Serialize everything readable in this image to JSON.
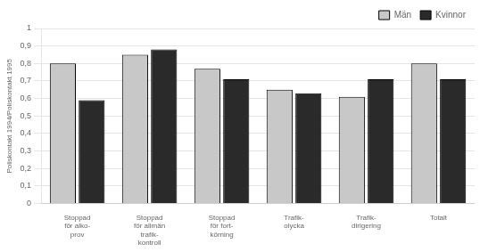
{
  "chart_data": {
    "type": "bar",
    "categories": [
      "Stoppad\nför alko-\nprov",
      "Stoppad\nför allmän\ntrafik-\nkontroll",
      "Stoppad\nför fort-\nkörning",
      "Trafik-\nolycka",
      "Trafik-\ndirigering",
      "Totalt"
    ],
    "series": [
      {
        "name": "Män",
        "color": "#c8c8c8",
        "values": [
          0.8,
          0.85,
          0.77,
          0.65,
          0.61,
          0.8
        ]
      },
      {
        "name": "Kvinnor",
        "color": "#2a2a2a",
        "values": [
          0.59,
          0.88,
          0.71,
          0.63,
          0.71,
          0.71
        ]
      }
    ],
    "ylabel": "Poliskontakt 1994/Poliskontakt 1995",
    "ylim": [
      0,
      1.0
    ],
    "yticks": [
      0,
      {
        "value": 0.1,
        "label": "0,1"
      },
      {
        "value": 0.2,
        "label": "0,2"
      },
      {
        "value": 0.3,
        "label": "0,3"
      },
      {
        "value": 0.4,
        "label": "0,4"
      },
      {
        "value": 0.5,
        "label": "0,5"
      },
      {
        "value": 0.6,
        "label": "0,6"
      },
      {
        "value": 0.7,
        "label": "0,7"
      },
      {
        "value": 0.8,
        "label": "0,8"
      },
      {
        "value": 0.9,
        "label": "0,9"
      },
      1
    ],
    "grid": true,
    "legend": "upper right"
  }
}
